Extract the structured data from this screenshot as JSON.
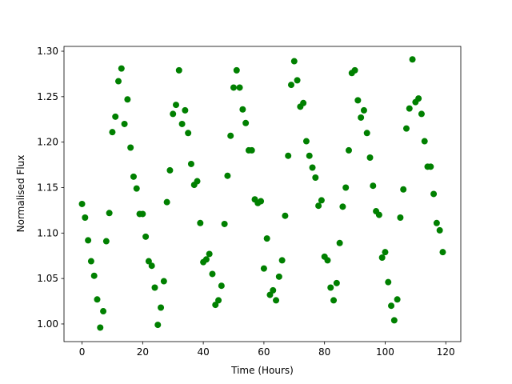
{
  "chart_data": {
    "type": "scatter",
    "x_label": "Time (Hours)",
    "y_label": "Normalised Flux",
    "color": "#008000",
    "x": [
      0,
      1,
      2,
      3,
      4,
      5,
      6,
      7,
      8,
      9,
      10,
      11,
      12,
      13,
      14,
      15,
      16,
      17,
      18,
      19,
      20,
      21,
      22,
      23,
      24,
      25,
      26,
      27,
      28,
      29,
      30,
      31,
      32,
      33,
      34,
      35,
      36,
      37,
      38,
      39,
      40,
      41,
      42,
      43,
      44,
      45,
      46,
      47,
      48,
      49,
      50,
      51,
      52,
      53,
      54,
      55,
      56,
      57,
      58,
      59,
      60,
      61,
      62,
      63,
      64,
      65,
      66,
      67,
      68,
      69,
      70,
      71,
      72,
      73,
      74,
      75,
      76,
      77,
      78,
      79,
      80,
      81,
      82,
      83,
      84,
      85,
      86,
      87,
      88,
      89,
      90,
      91,
      92,
      93,
      94,
      95,
      96,
      97,
      98,
      99,
      100,
      101,
      102,
      103,
      104,
      105,
      106,
      107,
      108,
      109,
      110,
      111,
      112,
      113,
      114,
      115,
      116,
      117,
      118,
      119
    ],
    "values": [
      1.132,
      1.117,
      1.092,
      1.069,
      1.053,
      1.027,
      0.996,
      1.014,
      1.091,
      1.122,
      1.211,
      1.228,
      1.267,
      1.281,
      1.22,
      1.247,
      1.194,
      1.162,
      1.149,
      1.121,
      1.121,
      1.096,
      1.069,
      1.064,
      1.04,
      0.999,
      1.018,
      1.047,
      1.134,
      1.169,
      1.231,
      1.241,
      1.279,
      1.22,
      1.235,
      1.21,
      1.176,
      1.153,
      1.157,
      1.111,
      1.068,
      1.071,
      1.077,
      1.055,
      1.021,
      1.026,
      1.042,
      1.11,
      1.163,
      1.207,
      1.26,
      1.279,
      1.26,
      1.236,
      1.221,
      1.191,
      1.191,
      1.137,
      1.133,
      1.135,
      1.061,
      1.094,
      1.032,
      1.037,
      1.026,
      1.052,
      1.07,
      1.119,
      1.185,
      1.263,
      1.289,
      1.268,
      1.239,
      1.243,
      1.201,
      1.185,
      1.172,
      1.161,
      1.13,
      1.136,
      1.074,
      1.07,
      1.04,
      1.026,
      1.045,
      1.089,
      1.129,
      1.15,
      1.191,
      1.276,
      1.279,
      1.246,
      1.227,
      1.235,
      1.21,
      1.183,
      1.152,
      1.124,
      1.12,
      1.073,
      1.079,
      1.046,
      1.02,
      1.004,
      1.027,
      1.117,
      1.148,
      1.215,
      1.237,
      1.291,
      1.244,
      1.248,
      1.231,
      1.201,
      1.173,
      1.173,
      1.143,
      1.111,
      1.103,
      1.079
    ],
    "xlim": [
      -5.95,
      124.95
    ],
    "xticks": [
      0,
      20,
      40,
      60,
      80,
      100,
      120
    ],
    "ylim": [
      0.9806,
      1.3053
    ],
    "yticks": [
      {
        "value": 1.0,
        "label": "1.00"
      },
      1.05,
      {
        "value": 1.1,
        "label": "1.10"
      },
      1.15,
      {
        "value": 1.2,
        "label": "1.20"
      },
      1.25,
      {
        "value": 1.3,
        "label": "1.30"
      }
    ]
  }
}
